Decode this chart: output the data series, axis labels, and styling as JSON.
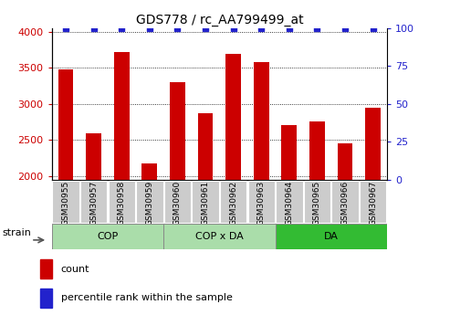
{
  "title": "GDS778 / rc_AA799499_at",
  "samples": [
    "GSM30955",
    "GSM30957",
    "GSM30958",
    "GSM30959",
    "GSM30960",
    "GSM30961",
    "GSM30962",
    "GSM30963",
    "GSM30964",
    "GSM30965",
    "GSM30966",
    "GSM30967"
  ],
  "counts": [
    3480,
    2590,
    3720,
    2170,
    3300,
    2870,
    3700,
    3580,
    2710,
    2760,
    2450,
    2950
  ],
  "ylim_left": [
    1950,
    4050
  ],
  "ylim_right": [
    0,
    100
  ],
  "yticks_left": [
    2000,
    2500,
    3000,
    3500,
    4000
  ],
  "yticks_right": [
    0,
    25,
    50,
    75,
    100
  ],
  "bar_color": "#cc0000",
  "dot_color": "#2222cc",
  "group_styles": [
    {
      "label": "COP",
      "start": 0,
      "end": 4,
      "color": "#aaddaa"
    },
    {
      "label": "COP x DA",
      "start": 4,
      "end": 8,
      "color": "#aaddaa"
    },
    {
      "label": "DA",
      "start": 8,
      "end": 12,
      "color": "#33bb33"
    }
  ],
  "strain_label": "strain",
  "legend_count_label": "count",
  "legend_pct_label": "percentile rank within the sample",
  "tick_label_color_left": "#cc0000",
  "tick_label_color_right": "#2222cc",
  "title_fontsize": 10,
  "sample_box_color": "#cccccc",
  "plot_bg": "#ffffff",
  "fig_bg": "#ffffff"
}
